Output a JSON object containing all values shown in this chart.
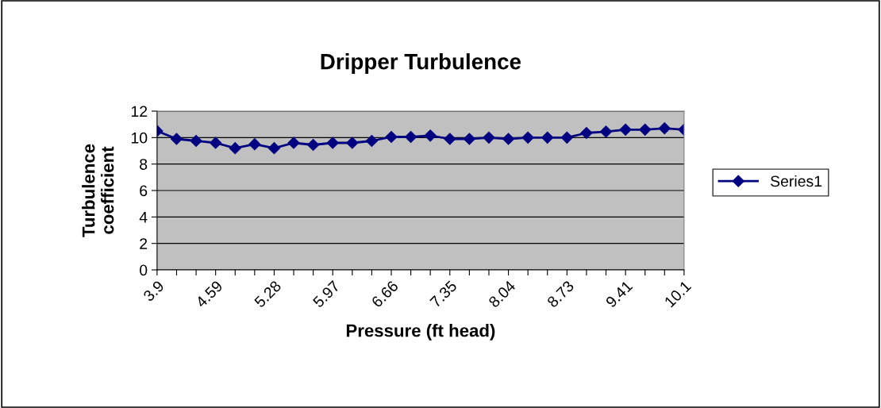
{
  "chart_data": {
    "type": "line",
    "title": "Dripper Turbulence",
    "xlabel": "Pressure (ft head)",
    "ylabel": "Turbulence\ncoefficient",
    "categories": [
      "3.9",
      null,
      null,
      "4.59",
      null,
      null,
      "5.28",
      null,
      null,
      "5.97",
      null,
      null,
      "6.66",
      null,
      null,
      "7.35",
      null,
      null,
      "8.04",
      null,
      null,
      "8.73",
      null,
      null,
      "9.41",
      null,
      null,
      "10.1"
    ],
    "series": [
      {
        "name": "Series1",
        "color": "#000080",
        "values": [
          10.5,
          9.9,
          9.75,
          9.6,
          9.2,
          9.5,
          9.2,
          9.6,
          9.45,
          9.6,
          9.6,
          9.75,
          10.05,
          10.05,
          10.15,
          9.9,
          9.9,
          10.0,
          9.9,
          10.0,
          10.0,
          10.0,
          10.35,
          10.45,
          10.6,
          10.6,
          10.7,
          10.6
        ]
      }
    ],
    "ylim": [
      0,
      12
    ],
    "yticks": [
      0,
      2,
      4,
      6,
      8,
      10,
      12
    ],
    "grid": "y",
    "legend": "right",
    "marker": "diamond",
    "line_style": "solid"
  }
}
